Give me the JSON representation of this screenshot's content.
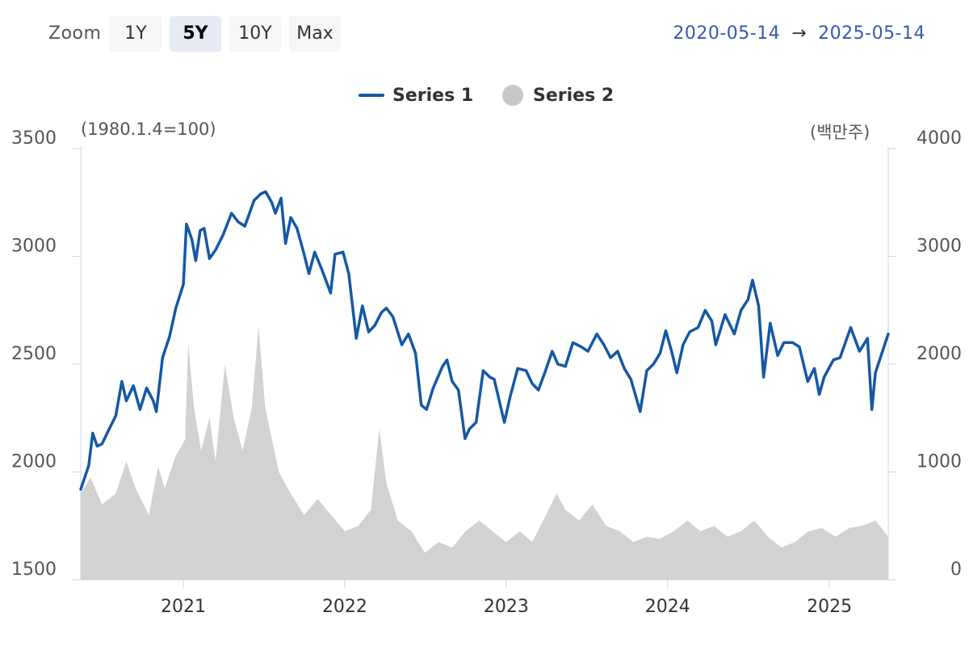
{
  "toolbar": {
    "zoom_label": "Zoom",
    "buttons": [
      "1Y",
      "5Y",
      "10Y",
      "Max"
    ],
    "active": "5Y",
    "range_start": "2020-05-14",
    "range_arrow": "→",
    "range_end": "2025-05-14"
  },
  "chart_data": {
    "type": "line",
    "left_axis_unit": "(1980.1.4=100)",
    "right_axis_unit": "(백만주)",
    "y_left": {
      "min": 1500,
      "max": 3500,
      "ticks": [
        "3500",
        "3000",
        "2500",
        "2000",
        "1500"
      ]
    },
    "y_right": {
      "min": 0,
      "max": 4000,
      "ticks": [
        "4000",
        "3000",
        "2000",
        "1000",
        "0"
      ]
    },
    "x_ticks": [
      "2021",
      "2022",
      "2023",
      "2024",
      "2025"
    ],
    "grid": false,
    "legend_placement": "top-center",
    "series": [
      {
        "name": "Series 1",
        "type": "line",
        "axis": "left",
        "color": "#1458a5",
        "points": [
          [
            "2020-05-14",
            1920
          ],
          [
            "2020-06-01",
            2030
          ],
          [
            "2020-06-10",
            2180
          ],
          [
            "2020-06-20",
            2120
          ],
          [
            "2020-07-01",
            2130
          ],
          [
            "2020-07-15",
            2190
          ],
          [
            "2020-08-01",
            2260
          ],
          [
            "2020-08-15",
            2420
          ],
          [
            "2020-08-25",
            2330
          ],
          [
            "2020-09-10",
            2400
          ],
          [
            "2020-09-25",
            2290
          ],
          [
            "2020-10-10",
            2390
          ],
          [
            "2020-10-25",
            2330
          ],
          [
            "2020-11-01",
            2280
          ],
          [
            "2020-11-15",
            2530
          ],
          [
            "2020-12-01",
            2630
          ],
          [
            "2020-12-15",
            2760
          ],
          [
            "2021-01-01",
            2870
          ],
          [
            "2021-01-08",
            3150
          ],
          [
            "2021-01-20",
            3080
          ],
          [
            "2021-01-29",
            2980
          ],
          [
            "2021-02-08",
            3120
          ],
          [
            "2021-02-17",
            3130
          ],
          [
            "2021-03-01",
            2990
          ],
          [
            "2021-03-15",
            3030
          ],
          [
            "2021-04-01",
            3100
          ],
          [
            "2021-04-20",
            3200
          ],
          [
            "2021-05-05",
            3160
          ],
          [
            "2021-05-20",
            3140
          ],
          [
            "2021-06-10",
            3260
          ],
          [
            "2021-06-25",
            3290
          ],
          [
            "2021-07-06",
            3300
          ],
          [
            "2021-07-20",
            3250
          ],
          [
            "2021-07-28",
            3200
          ],
          [
            "2021-08-10",
            3270
          ],
          [
            "2021-08-20",
            3060
          ],
          [
            "2021-09-01",
            3180
          ],
          [
            "2021-09-15",
            3130
          ],
          [
            "2021-10-01",
            3010
          ],
          [
            "2021-10-12",
            2920
          ],
          [
            "2021-10-25",
            3020
          ],
          [
            "2021-11-10",
            2940
          ],
          [
            "2021-11-30",
            2830
          ],
          [
            "2021-12-10",
            3010
          ],
          [
            "2021-12-28",
            3020
          ],
          [
            "2022-01-10",
            2920
          ],
          [
            "2022-01-27",
            2620
          ],
          [
            "2022-02-10",
            2770
          ],
          [
            "2022-02-24",
            2650
          ],
          [
            "2022-03-10",
            2680
          ],
          [
            "2022-03-25",
            2740
          ],
          [
            "2022-04-05",
            2760
          ],
          [
            "2022-04-20",
            2720
          ],
          [
            "2022-05-10",
            2590
          ],
          [
            "2022-05-25",
            2640
          ],
          [
            "2022-06-10",
            2550
          ],
          [
            "2022-06-23",
            2310
          ],
          [
            "2022-07-05",
            2290
          ],
          [
            "2022-07-20",
            2390
          ],
          [
            "2022-08-10",
            2490
          ],
          [
            "2022-08-20",
            2520
          ],
          [
            "2022-09-01",
            2420
          ],
          [
            "2022-09-15",
            2380
          ],
          [
            "2022-09-30",
            2155
          ],
          [
            "2022-10-10",
            2200
          ],
          [
            "2022-10-25",
            2230
          ],
          [
            "2022-11-10",
            2470
          ],
          [
            "2022-11-25",
            2440
          ],
          [
            "2022-12-05",
            2430
          ],
          [
            "2022-12-28",
            2230
          ],
          [
            "2023-01-10",
            2350
          ],
          [
            "2023-01-27",
            2480
          ],
          [
            "2023-02-15",
            2470
          ],
          [
            "2023-03-01",
            2410
          ],
          [
            "2023-03-15",
            2380
          ],
          [
            "2023-03-31",
            2470
          ],
          [
            "2023-04-15",
            2560
          ],
          [
            "2023-04-28",
            2500
          ],
          [
            "2023-05-15",
            2490
          ],
          [
            "2023-06-01",
            2600
          ],
          [
            "2023-06-20",
            2580
          ],
          [
            "2023-07-05",
            2560
          ],
          [
            "2023-07-25",
            2640
          ],
          [
            "2023-08-10",
            2590
          ],
          [
            "2023-08-25",
            2530
          ],
          [
            "2023-09-10",
            2560
          ],
          [
            "2023-09-25",
            2480
          ],
          [
            "2023-10-10",
            2430
          ],
          [
            "2023-10-31",
            2280
          ],
          [
            "2023-11-15",
            2470
          ],
          [
            "2023-11-30",
            2500
          ],
          [
            "2023-12-15",
            2550
          ],
          [
            "2023-12-28",
            2655
          ],
          [
            "2024-01-10",
            2560
          ],
          [
            "2024-01-22",
            2460
          ],
          [
            "2024-02-05",
            2590
          ],
          [
            "2024-02-20",
            2650
          ],
          [
            "2024-03-10",
            2670
          ],
          [
            "2024-03-26",
            2750
          ],
          [
            "2024-04-10",
            2700
          ],
          [
            "2024-04-19",
            2590
          ],
          [
            "2024-05-10",
            2730
          ],
          [
            "2024-05-31",
            2640
          ],
          [
            "2024-06-15",
            2750
          ],
          [
            "2024-07-01",
            2800
          ],
          [
            "2024-07-11",
            2890
          ],
          [
            "2024-07-25",
            2770
          ],
          [
            "2024-08-05",
            2440
          ],
          [
            "2024-08-20",
            2690
          ],
          [
            "2024-09-06",
            2540
          ],
          [
            "2024-09-20",
            2600
          ],
          [
            "2024-10-10",
            2600
          ],
          [
            "2024-10-25",
            2580
          ],
          [
            "2024-11-13",
            2420
          ],
          [
            "2024-11-28",
            2480
          ],
          [
            "2024-12-09",
            2360
          ],
          [
            "2024-12-20",
            2440
          ],
          [
            "2025-01-10",
            2520
          ],
          [
            "2025-01-25",
            2530
          ],
          [
            "2025-02-18",
            2670
          ],
          [
            "2025-03-10",
            2560
          ],
          [
            "2025-03-28",
            2620
          ],
          [
            "2025-04-07",
            2290
          ],
          [
            "2025-04-15",
            2460
          ],
          [
            "2025-05-01",
            2560
          ],
          [
            "2025-05-14",
            2640
          ]
        ]
      },
      {
        "name": "Series 2",
        "type": "area",
        "axis": "right",
        "color": "#d2d2d2",
        "points": [
          [
            "2020-05-14",
            800
          ],
          [
            "2020-06-05",
            950
          ],
          [
            "2020-07-01",
            700
          ],
          [
            "2020-08-01",
            800
          ],
          [
            "2020-08-25",
            1100
          ],
          [
            "2020-09-15",
            850
          ],
          [
            "2020-10-15",
            600
          ],
          [
            "2020-11-05",
            1050
          ],
          [
            "2020-11-20",
            850
          ],
          [
            "2020-12-15",
            1150
          ],
          [
            "2021-01-05",
            1300
          ],
          [
            "2021-01-12",
            2200
          ],
          [
            "2021-01-25",
            1600
          ],
          [
            "2021-02-10",
            1200
          ],
          [
            "2021-03-01",
            1500
          ],
          [
            "2021-03-15",
            1100
          ],
          [
            "2021-04-05",
            2000
          ],
          [
            "2021-04-25",
            1500
          ],
          [
            "2021-05-15",
            1200
          ],
          [
            "2021-06-05",
            1600
          ],
          [
            "2021-06-20",
            2350
          ],
          [
            "2021-07-05",
            1600
          ],
          [
            "2021-08-05",
            1000
          ],
          [
            "2021-09-01",
            800
          ],
          [
            "2021-10-01",
            600
          ],
          [
            "2021-11-01",
            750
          ],
          [
            "2021-12-01",
            600
          ],
          [
            "2022-01-01",
            450
          ],
          [
            "2022-02-01",
            500
          ],
          [
            "2022-03-01",
            650
          ],
          [
            "2022-03-20",
            1400
          ],
          [
            "2022-04-05",
            900
          ],
          [
            "2022-05-01",
            550
          ],
          [
            "2022-06-01",
            450
          ],
          [
            "2022-07-01",
            250
          ],
          [
            "2022-08-01",
            350
          ],
          [
            "2022-09-01",
            300
          ],
          [
            "2022-10-01",
            450
          ],
          [
            "2022-11-01",
            550
          ],
          [
            "2022-12-01",
            450
          ],
          [
            "2023-01-01",
            350
          ],
          [
            "2023-02-01",
            450
          ],
          [
            "2023-03-01",
            350
          ],
          [
            "2023-04-01",
            600
          ],
          [
            "2023-04-25",
            800
          ],
          [
            "2023-05-15",
            650
          ],
          [
            "2023-06-15",
            550
          ],
          [
            "2023-07-15",
            700
          ],
          [
            "2023-08-15",
            500
          ],
          [
            "2023-09-15",
            450
          ],
          [
            "2023-10-15",
            350
          ],
          [
            "2023-11-15",
            400
          ],
          [
            "2023-12-15",
            380
          ],
          [
            "2024-01-15",
            450
          ],
          [
            "2024-02-15",
            550
          ],
          [
            "2024-03-15",
            450
          ],
          [
            "2024-04-15",
            500
          ],
          [
            "2024-05-15",
            400
          ],
          [
            "2024-06-15",
            450
          ],
          [
            "2024-07-15",
            550
          ],
          [
            "2024-08-15",
            400
          ],
          [
            "2024-09-15",
            300
          ],
          [
            "2024-10-15",
            350
          ],
          [
            "2024-11-15",
            450
          ],
          [
            "2024-12-15",
            480
          ],
          [
            "2025-01-15",
            400
          ],
          [
            "2025-02-15",
            480
          ],
          [
            "2025-03-15",
            500
          ],
          [
            "2025-04-15",
            550
          ],
          [
            "2025-05-14",
            400
          ]
        ]
      }
    ]
  }
}
